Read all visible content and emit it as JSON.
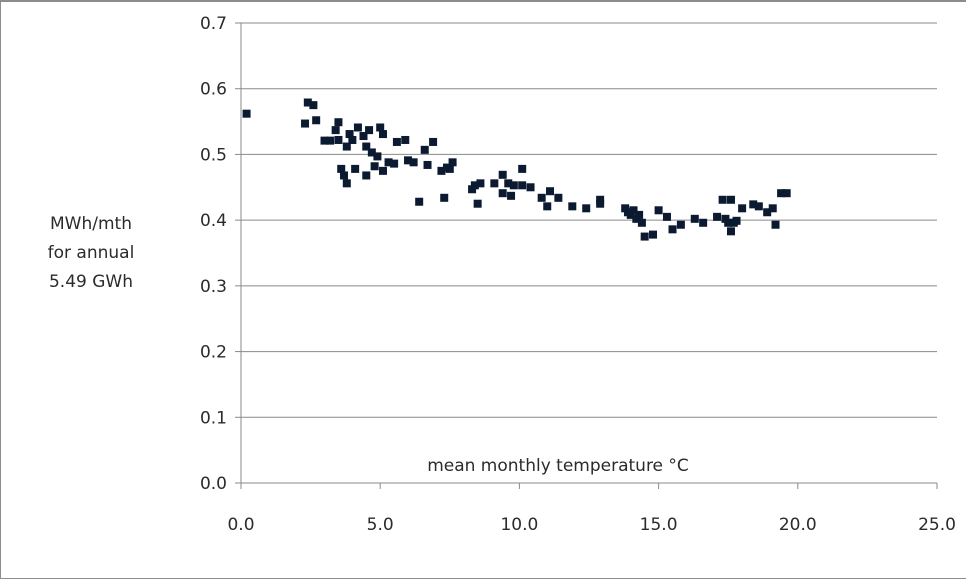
{
  "chart_data": {
    "type": "scatter",
    "title": "",
    "xlabel": "mean monthly temperature °C",
    "ylabel_lines": [
      "MWh/mth",
      "for annual",
      "5.49 GWh"
    ],
    "xlim": [
      0,
      25
    ],
    "ylim": [
      0,
      0.7
    ],
    "x_ticks": [
      "0.0",
      "5.0",
      "10.0",
      "15.0",
      "20.0",
      "25.0"
    ],
    "y_ticks": [
      "0.0",
      "0.1",
      "0.2",
      "0.3",
      "0.4",
      "0.5",
      "0.6",
      "0.7"
    ],
    "grid": "horizontal",
    "marker_color": "#0b1a30",
    "series": [
      {
        "points": [
          [
            0.2,
            0.562
          ],
          [
            2.3,
            0.547
          ],
          [
            2.4,
            0.579
          ],
          [
            2.6,
            0.575
          ],
          [
            2.7,
            0.552
          ],
          [
            3.0,
            0.521
          ],
          [
            3.2,
            0.521
          ],
          [
            3.4,
            0.537
          ],
          [
            3.5,
            0.549
          ],
          [
            3.5,
            0.522
          ],
          [
            3.6,
            0.478
          ],
          [
            3.7,
            0.468
          ],
          [
            3.8,
            0.456
          ],
          [
            3.8,
            0.512
          ],
          [
            3.9,
            0.531
          ],
          [
            4.0,
            0.522
          ],
          [
            4.1,
            0.478
          ],
          [
            4.2,
            0.541
          ],
          [
            4.4,
            0.528
          ],
          [
            4.5,
            0.468
          ],
          [
            4.5,
            0.512
          ],
          [
            4.6,
            0.537
          ],
          [
            4.7,
            0.503
          ],
          [
            4.8,
            0.482
          ],
          [
            4.9,
            0.497
          ],
          [
            5.0,
            0.541
          ],
          [
            5.1,
            0.475
          ],
          [
            5.1,
            0.531
          ],
          [
            5.3,
            0.488
          ],
          [
            5.5,
            0.486
          ],
          [
            5.6,
            0.519
          ],
          [
            5.9,
            0.522
          ],
          [
            6.0,
            0.491
          ],
          [
            6.2,
            0.488
          ],
          [
            6.4,
            0.428
          ],
          [
            6.6,
            0.507
          ],
          [
            6.7,
            0.484
          ],
          [
            6.9,
            0.519
          ],
          [
            7.2,
            0.475
          ],
          [
            7.3,
            0.434
          ],
          [
            7.4,
            0.48
          ],
          [
            7.5,
            0.478
          ],
          [
            7.6,
            0.488
          ],
          [
            8.3,
            0.447
          ],
          [
            8.4,
            0.453
          ],
          [
            8.5,
            0.425
          ],
          [
            8.6,
            0.456
          ],
          [
            9.1,
            0.456
          ],
          [
            9.4,
            0.441
          ],
          [
            9.4,
            0.469
          ],
          [
            9.6,
            0.456
          ],
          [
            9.7,
            0.437
          ],
          [
            9.8,
            0.453
          ],
          [
            10.1,
            0.453
          ],
          [
            10.1,
            0.478
          ],
          [
            10.4,
            0.45
          ],
          [
            10.8,
            0.434
          ],
          [
            11.0,
            0.421
          ],
          [
            11.1,
            0.444
          ],
          [
            11.4,
            0.434
          ],
          [
            11.9,
            0.421
          ],
          [
            12.4,
            0.418
          ],
          [
            12.9,
            0.431
          ],
          [
            12.9,
            0.425
          ],
          [
            13.8,
            0.418
          ],
          [
            13.9,
            0.412
          ],
          [
            14.0,
            0.408
          ],
          [
            14.1,
            0.415
          ],
          [
            14.2,
            0.402
          ],
          [
            14.3,
            0.408
          ],
          [
            14.4,
            0.396
          ],
          [
            14.5,
            0.375
          ],
          [
            14.8,
            0.378
          ],
          [
            15.0,
            0.415
          ],
          [
            15.3,
            0.405
          ],
          [
            15.5,
            0.386
          ],
          [
            15.8,
            0.393
          ],
          [
            16.3,
            0.402
          ],
          [
            16.6,
            0.396
          ],
          [
            17.1,
            0.405
          ],
          [
            17.3,
            0.431
          ],
          [
            17.4,
            0.402
          ],
          [
            17.5,
            0.396
          ],
          [
            17.6,
            0.431
          ],
          [
            17.6,
            0.383
          ],
          [
            17.7,
            0.396
          ],
          [
            17.8,
            0.399
          ],
          [
            18.0,
            0.418
          ],
          [
            18.4,
            0.424
          ],
          [
            18.6,
            0.421
          ],
          [
            18.9,
            0.412
          ],
          [
            19.1,
            0.418
          ],
          [
            19.2,
            0.393
          ],
          [
            19.4,
            0.441
          ],
          [
            19.6,
            0.441
          ]
        ]
      }
    ]
  }
}
